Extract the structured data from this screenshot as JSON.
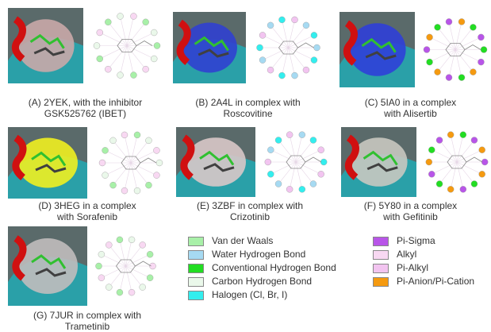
{
  "panels": [
    {
      "caption": [
        "(A) 2YEK, with the inhibitor",
        "GSK525762 (IBET)"
      ]
    },
    {
      "caption": [
        "(B) 2A4L in complex with",
        "Roscovitine"
      ]
    },
    {
      "caption": [
        "(C)  5IA0 in a complex",
        "with Alisertib"
      ]
    },
    {
      "caption": [
        "(D) 3HEG in a complex",
        "with Sorafenib"
      ]
    },
    {
      "caption": [
        "(E) 3ZBF in complex with",
        "Crizotinib"
      ]
    },
    {
      "caption": [
        "(F) 5Y80 in a complex",
        "with Gefitinib"
      ]
    },
    {
      "caption": [
        "(G) 7JUR in complex with",
        "Trametinib"
      ]
    }
  ],
  "legend": [
    {
      "label": "Van der Waals",
      "color": "#a8f0a8"
    },
    {
      "label": "Water Hydrogen Bond",
      "color": "#a6daf2"
    },
    {
      "label": "Conventional Hydrogen Bond",
      "color": "#22dd22"
    },
    {
      "label": "Carbon Hydrogen Bond",
      "color": "#eaf8ea"
    },
    {
      "label": "Halogen (Cl, Br, I)",
      "color": "#33eeee"
    },
    {
      "label": "Pi-Sigma",
      "color": "#b855e8"
    },
    {
      "label": "Alkyl",
      "color": "#f8d8f2"
    },
    {
      "label": "Pi-Alkyl",
      "color": "#f2c4f0"
    },
    {
      "label": "Pi-Anion/Pi-Cation",
      "color": "#f59a10"
    }
  ]
}
